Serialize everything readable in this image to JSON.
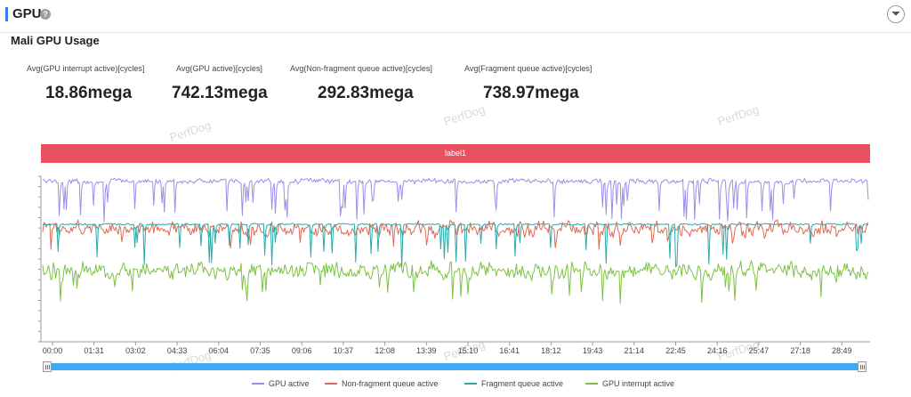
{
  "header": {
    "title": "GPU",
    "help_icon": "help-icon",
    "collapse_icon": "chevron-down-icon"
  },
  "section": {
    "title": "Mali GPU Usage"
  },
  "stats": [
    {
      "label": "Avg(GPU interrupt active)[cycles]",
      "value": "18.86mega"
    },
    {
      "label": "Avg(GPU active)[cycles]",
      "value": "742.13mega"
    },
    {
      "label": "Avg(Non-fragment queue active)[cycles]",
      "value": "292.83mega"
    },
    {
      "label": "Avg(Fragment queue active)[cycles]",
      "value": "738.97mega"
    }
  ],
  "watermark": "PerfDog",
  "label_band": "label1",
  "chart_data": {
    "type": "line",
    "title": "Mali GPU Usage",
    "x_tick_labels": [
      "00:00",
      "01:31",
      "03:02",
      "04:33",
      "06:04",
      "07:35",
      "09:06",
      "10:37",
      "12:08",
      "13:39",
      "15:10",
      "16:41",
      "18:12",
      "19:43",
      "21:14",
      "22:45",
      "24:16",
      "25:47",
      "27:18",
      "28:49"
    ],
    "y_axis_labels_visible": false,
    "grid": false,
    "legend_position": "bottom",
    "series": [
      {
        "name": "GPU active",
        "color": "#9b8fe8",
        "typical_level": 0.97,
        "spike_floor": 0.72
      },
      {
        "name": "Non-fragment queue active",
        "color": "#e06a55",
        "typical_level": 0.68,
        "spike_floor": 0.55
      },
      {
        "name": "Fragment queue active",
        "color": "#2aa9a9",
        "typical_level": 0.71,
        "spike_floor": 0.45
      },
      {
        "name": "GPU interrupt active",
        "color": "#7cc242",
        "typical_level": 0.43,
        "spike_floor": 0.22
      }
    ]
  },
  "legend": [
    {
      "name": "GPU active",
      "color": "#9b8fe8"
    },
    {
      "name": "Non-fragment queue active",
      "color": "#e06a55"
    },
    {
      "name": "Fragment queue active",
      "color": "#2aa9a9"
    },
    {
      "name": "GPU interrupt active",
      "color": "#7cc242"
    }
  ]
}
